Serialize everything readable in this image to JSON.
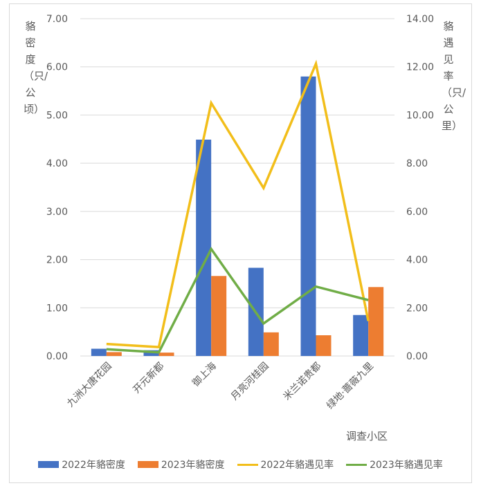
{
  "chart_data": {
    "type": "bar+line",
    "title": "",
    "xlabel": "调查小区",
    "ylabel_left": "貉密度（只/公顷）",
    "ylabel_right": "貉遇见率（只/公里）",
    "categories": [
      "九洲大唐花园",
      "开元新都",
      "御上海",
      "月亮河桂园",
      "米兰诺贵都",
      "绿地·蔷薇九里"
    ],
    "ylim_left": [
      0,
      7
    ],
    "ylim_right": [
      0,
      14
    ],
    "yticks_left": [
      "0.00",
      "1.00",
      "2.00",
      "3.00",
      "4.00",
      "5.00",
      "6.00",
      "7.00"
    ],
    "yticks_right": [
      "0.00",
      "2.00",
      "4.00",
      "6.00",
      "8.00",
      "10.00",
      "12.00",
      "14.00"
    ],
    "grid": true,
    "legend_position": "bottom",
    "series": [
      {
        "name": "2022年貉密度",
        "type": "bar",
        "axis": "left",
        "color": "#4472C4",
        "values": [
          0.15,
          0.12,
          4.49,
          1.83,
          5.8,
          0.85
        ]
      },
      {
        "name": "2023年貉密度",
        "type": "bar",
        "axis": "left",
        "color": "#ED7D31",
        "values": [
          0.08,
          0.07,
          1.66,
          0.49,
          0.43,
          1.43
        ]
      },
      {
        "name": "2022年貉遇见率",
        "type": "line",
        "axis": "right",
        "color": "#F2BE1A",
        "values": [
          0.5,
          0.37,
          10.5,
          6.97,
          12.13,
          1.45
        ]
      },
      {
        "name": "2023年貉遇见率",
        "type": "line",
        "axis": "right",
        "color": "#70AD47",
        "values": [
          0.28,
          0.15,
          4.44,
          1.35,
          2.88,
          2.32
        ]
      }
    ]
  },
  "axis_titles": {
    "left": "貉密度（只/公顷）",
    "right": "貉遇见率（只/公里）",
    "x": "调查小区"
  },
  "legend": [
    {
      "label": "2022年貉密度",
      "color": "#4472C4",
      "kind": "bar"
    },
    {
      "label": "2023年貉密度",
      "color": "#ED7D31",
      "kind": "bar"
    },
    {
      "label": "2022年貉遇见率",
      "color": "#F2BE1A",
      "kind": "line"
    },
    {
      "label": "2023年貉遇见率",
      "color": "#70AD47",
      "kind": "line"
    }
  ]
}
